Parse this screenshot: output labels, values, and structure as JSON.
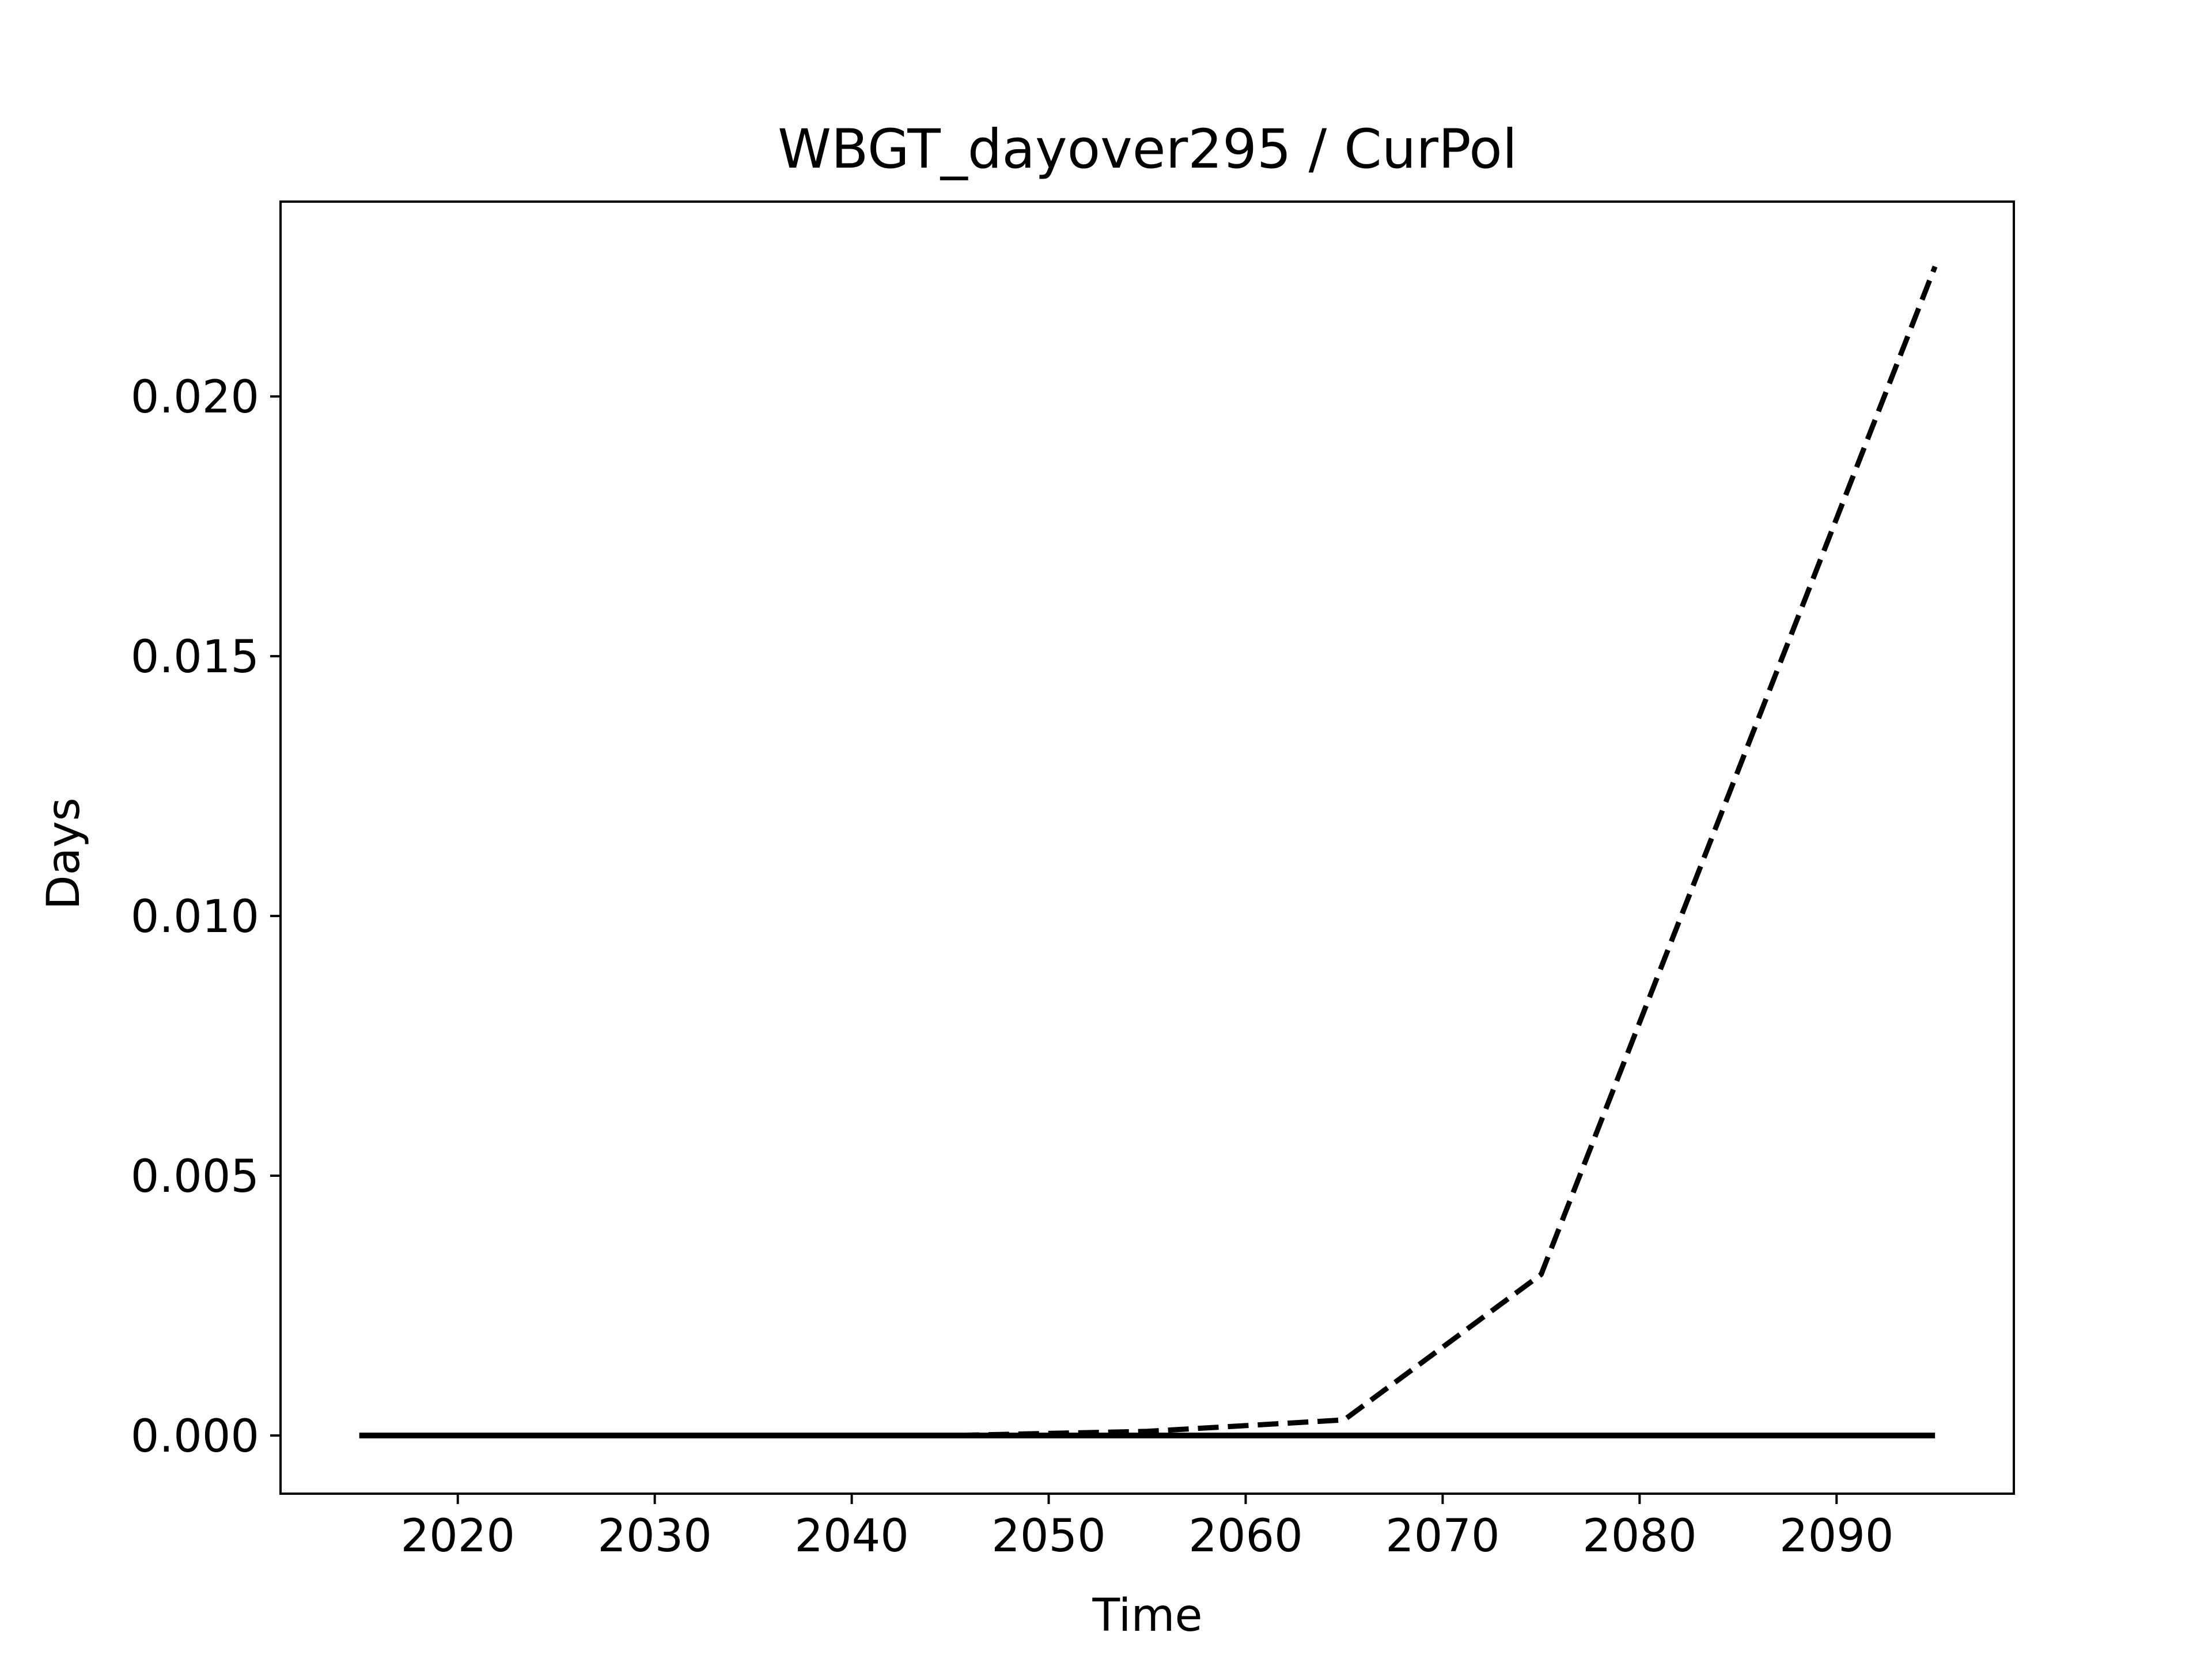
{
  "chart_data": {
    "type": "line",
    "title": "WBGT_dayover295 / CurPol",
    "xlabel": "Time",
    "ylabel": "Days",
    "xlim": [
      2011,
      2099
    ],
    "ylim": [
      -0.00112,
      0.02375
    ],
    "x_ticks": [
      2020,
      2030,
      2040,
      2050,
      2060,
      2070,
      2080,
      2090
    ],
    "y_ticks": [
      0.0,
      0.005,
      0.01,
      0.015,
      0.02
    ],
    "x_tick_labels": [
      "2020",
      "2030",
      "2040",
      "2050",
      "2060",
      "2070",
      "2080",
      "2090"
    ],
    "y_tick_labels": [
      "0.000",
      "0.005",
      "0.010",
      "0.015",
      "0.020"
    ],
    "grid": false,
    "legend": "none",
    "series": [
      {
        "style": "solid",
        "color": "#000000",
        "x": [
          2015,
          2025,
          2035,
          2045,
          2055,
          2065,
          2075,
          2085,
          2095
        ],
        "y": [
          0.0,
          0.0,
          0.0,
          0.0,
          0.0,
          0.0,
          0.0,
          0.0,
          0.0
        ]
      },
      {
        "style": "dashed",
        "color": "#000000",
        "x": [
          2015,
          2025,
          2035,
          2045,
          2055,
          2065,
          2075,
          2085,
          2095
        ],
        "y": [
          0.0,
          0.0,
          0.0,
          0.0,
          8e-05,
          0.0003,
          0.0031,
          0.0128,
          0.0225
        ]
      }
    ]
  }
}
